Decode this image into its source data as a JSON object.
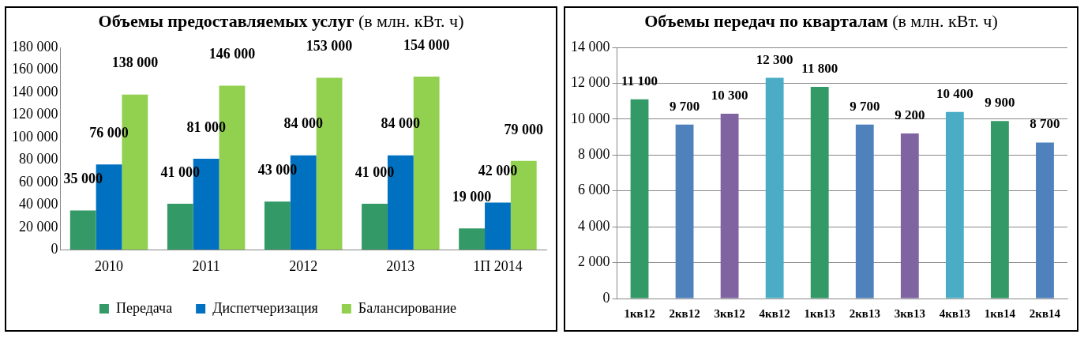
{
  "chart_data": [
    {
      "type": "bar",
      "title": "Объемы предоставляемых услуг",
      "subtitle": "(в млн. кВт. ч)",
      "categories": [
        "2010",
        "2011",
        "2012",
        "2013",
        "1П 2014"
      ],
      "series": [
        {
          "name": "Передача",
          "color": "#339966",
          "values": [
            35000,
            41000,
            43000,
            41000,
            19000
          ]
        },
        {
          "name": "Диспетчеризация",
          "color": "#0070c0",
          "values": [
            76000,
            81000,
            84000,
            84000,
            42000
          ]
        },
        {
          "name": "Балансирование",
          "color": "#92d050",
          "values": [
            138000,
            146000,
            153000,
            154000,
            79000
          ]
        }
      ],
      "ylim": [
        0,
        180000
      ],
      "yticks": [
        0,
        20000,
        40000,
        60000,
        80000,
        100000,
        120000,
        140000,
        160000,
        180000
      ],
      "grid": false,
      "legend": "bottom",
      "data_labels": true
    },
    {
      "type": "bar",
      "title": "Объемы передач по кварталам",
      "subtitle": "(в млн. кВт. ч)",
      "categories": [
        "1кв12",
        "2кв12",
        "3кв12",
        "4кв12",
        "1кв13",
        "2кв13",
        "3кв13",
        "4кв13",
        "1кв14",
        "2кв14"
      ],
      "values": [
        11100,
        9700,
        10300,
        12300,
        11800,
        9700,
        9200,
        10400,
        9900,
        8700
      ],
      "colors": [
        "#339966",
        "#4f81bd",
        "#8064a2",
        "#4bacc6",
        "#339966",
        "#4f81bd",
        "#8064a2",
        "#4bacc6",
        "#339966",
        "#4f81bd"
      ],
      "ylim": [
        0,
        14000
      ],
      "yticks": [
        0,
        2000,
        4000,
        6000,
        8000,
        10000,
        12000,
        14000
      ],
      "grid": "y",
      "legend": false,
      "data_labels": true
    }
  ]
}
